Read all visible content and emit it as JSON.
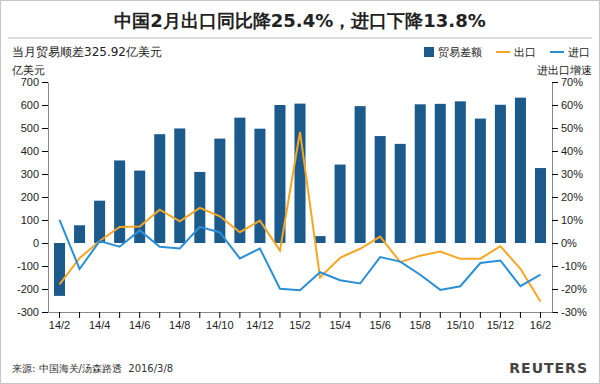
{
  "chart_data": {
    "type": "bar",
    "title": "中国2月出口同比降25.4%，进口下降13.8%",
    "subtitle": "当月贸易顺差325.92亿美元",
    "y_label": "亿美元",
    "y2_label": "进出口增速",
    "source": "来源: 中国海关/汤森路透  2016/3/8",
    "logo": "REUTERS",
    "categories": [
      "14/2",
      null,
      "14/4",
      null,
      "14/6",
      null,
      "14/8",
      null,
      "14/10",
      null,
      "14/12",
      null,
      "15/2",
      null,
      "15/4",
      null,
      "15/6",
      null,
      "15/8",
      null,
      "15/10",
      null,
      "15/12",
      null,
      "16/2"
    ],
    "series": [
      {
        "name": "贸易差额",
        "type": "bar",
        "color": "#1d5a8c",
        "values": [
          -230,
          77,
          184,
          359,
          315,
          473,
          498,
          309,
          454,
          545,
          497,
          600,
          606,
          30,
          341,
          595,
          465,
          431,
          603,
          605,
          616,
          541,
          601,
          632,
          325.92
        ]
      },
      {
        "name": "出口",
        "type": "line",
        "axis": "y2",
        "color": "#f5a623",
        "values": [
          -18,
          -6.6,
          0.9,
          7,
          7.2,
          14.5,
          9.4,
          15.3,
          11.6,
          4.7,
          9.7,
          -3.3,
          48.3,
          -15,
          -6.4,
          -2.5,
          2.8,
          -8.3,
          -5.5,
          -3.7,
          -6.9,
          -6.8,
          -1.4,
          -11.2,
          -25.4
        ]
      },
      {
        "name": "进口",
        "type": "line",
        "axis": "y2",
        "color": "#2b8fd6",
        "values": [
          10.1,
          -11.3,
          0.8,
          -1.6,
          5.5,
          -1.6,
          -2.4,
          7,
          4.6,
          -6.7,
          -2.4,
          -19.9,
          -20.5,
          -12.7,
          -16.2,
          -17.6,
          -6.1,
          -8.1,
          -13.8,
          -20.4,
          -18.8,
          -8.7,
          -7.6,
          -18.8,
          -13.8
        ]
      }
    ],
    "ylim": [
      -300,
      700
    ],
    "yticks": [
      -300,
      -200,
      -100,
      0,
      100,
      200,
      300,
      400,
      500,
      600,
      700
    ],
    "y2lim": [
      -30,
      70
    ],
    "y2ticks": [
      {
        "value": -30,
        "label": "-30%"
      },
      {
        "value": -20,
        "label": "-20%"
      },
      {
        "value": -10,
        "label": "-10%"
      },
      {
        "value": 0,
        "label": "0%"
      },
      {
        "value": 10,
        "label": "10%"
      },
      {
        "value": 20,
        "label": "20%"
      },
      {
        "value": 30,
        "label": "30%"
      },
      {
        "value": 40,
        "label": "40%"
      },
      {
        "value": 50,
        "label": "50%"
      },
      {
        "value": 60,
        "label": "60%"
      },
      {
        "value": 70,
        "label": "70%"
      }
    ],
    "legend": "top-right",
    "grid": false
  }
}
